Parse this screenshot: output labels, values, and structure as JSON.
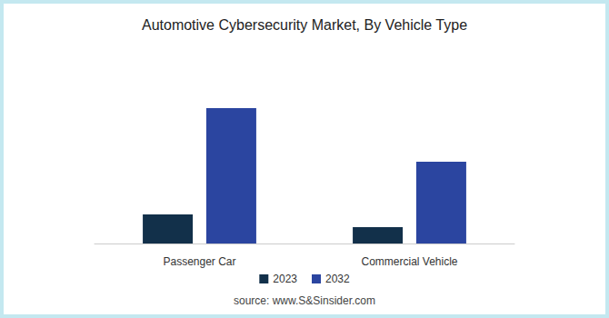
{
  "chart_data": {
    "type": "bar",
    "title": "Automotive Cybersecurity Market, By Vehicle Type",
    "categories": [
      "Passenger Car",
      "Commercial Vehicle"
    ],
    "series": [
      {
        "name": "2023",
        "color": "#12304a",
        "values": [
          3.2,
          1.8
        ]
      },
      {
        "name": "2032",
        "color": "#2b45a0",
        "values": [
          14.9,
          9.0
        ]
      }
    ],
    "annotations": [
      "source: www.S&Sinsider.com"
    ],
    "legend": "bottom",
    "grid": false,
    "tick_labels": "x"
  }
}
